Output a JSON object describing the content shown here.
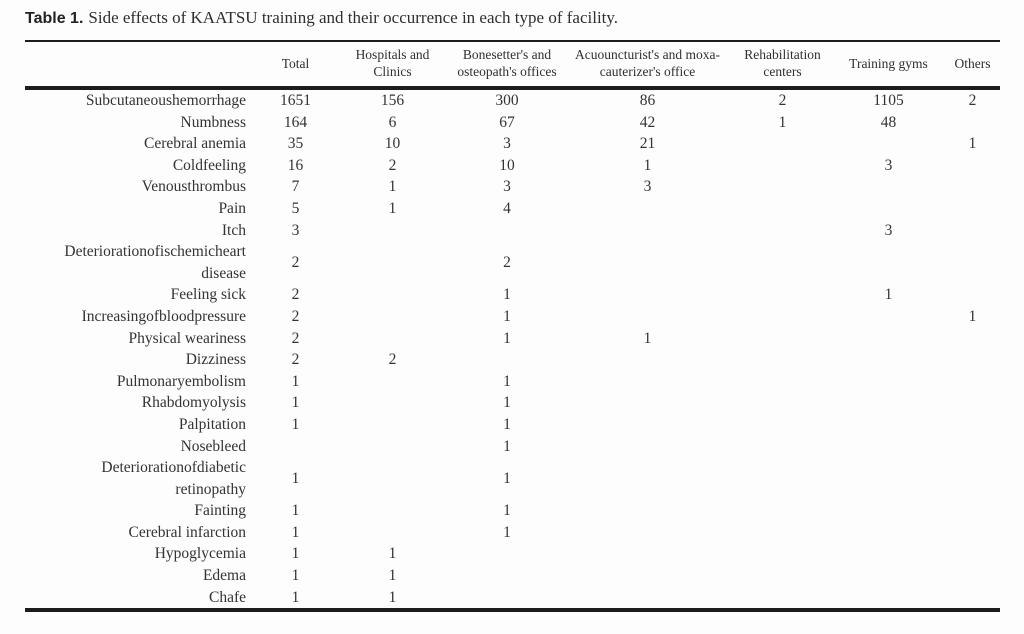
{
  "title": {
    "number": "Table 1.",
    "caption": "Side effects of KAATSU training and their occurrence in each type of facility."
  },
  "colors": {
    "background": "#fdfdfd",
    "text": "#333333",
    "rule": "#1c1c1c"
  },
  "table": {
    "columns": [
      "",
      "Total",
      "Hospitals and Clinics",
      "Bonesetter's and osteopath's offices",
      "Acuouncturist's and moxa-cauterizer's office",
      "Rehabilitation centers",
      "Training gyms",
      "Others"
    ],
    "rows": [
      {
        "label": "Subcutaneoushemorrhage",
        "values": [
          "1651",
          "156",
          "300",
          "86",
          "2",
          "1105",
          "2"
        ]
      },
      {
        "label": "Numbness",
        "values": [
          "164",
          "6",
          "67",
          "42",
          "1",
          "48",
          ""
        ]
      },
      {
        "label": "Cerebral anemia",
        "values": [
          "35",
          "10",
          "3",
          "21",
          "",
          "",
          "1"
        ]
      },
      {
        "label": "Coldfeeling",
        "values": [
          "16",
          "2",
          "10",
          "1",
          "",
          "3",
          ""
        ]
      },
      {
        "label": "Venousthrombus",
        "values": [
          "7",
          "1",
          "3",
          "3",
          "",
          "",
          ""
        ]
      },
      {
        "label": "Pain",
        "values": [
          "5",
          "1",
          "4",
          "",
          "",
          "",
          ""
        ]
      },
      {
        "label": "Itch",
        "values": [
          "3",
          "",
          "",
          "",
          "",
          "3",
          ""
        ]
      },
      {
        "label": "Deteriorationofischemicheart disease",
        "values": [
          "2",
          "",
          "2",
          "",
          "",
          "",
          ""
        ]
      },
      {
        "label": "Feeling sick",
        "values": [
          "2",
          "",
          "1",
          "",
          "",
          "1",
          ""
        ]
      },
      {
        "label": "Increasingofbloodpressure",
        "values": [
          "2",
          "",
          "1",
          "",
          "",
          "",
          "1"
        ]
      },
      {
        "label": "Physical weariness",
        "values": [
          "2",
          "",
          "1",
          "1",
          "",
          "",
          ""
        ]
      },
      {
        "label": "Dizziness",
        "values": [
          "2",
          "2",
          "",
          "",
          "",
          "",
          ""
        ]
      },
      {
        "label": "Pulmonaryembolism",
        "values": [
          "1",
          "",
          "1",
          "",
          "",
          "",
          ""
        ]
      },
      {
        "label": "Rhabdomyolysis",
        "values": [
          "1",
          "",
          "1",
          "",
          "",
          "",
          ""
        ]
      },
      {
        "label": "Palpitation",
        "values": [
          "1",
          "",
          "1",
          "",
          "",
          "",
          ""
        ]
      },
      {
        "label": "Nosebleed",
        "values": [
          "",
          "",
          "1",
          "",
          "",
          "",
          ""
        ]
      },
      {
        "label": "Deteriorationofdiabetic retinopathy",
        "values": [
          "1",
          "",
          "1",
          "",
          "",
          "",
          ""
        ]
      },
      {
        "label": "Fainting",
        "values": [
          "1",
          "",
          "1",
          "",
          "",
          "",
          ""
        ]
      },
      {
        "label": "Cerebral infarction",
        "values": [
          "1",
          "",
          "1",
          "",
          "",
          "",
          ""
        ]
      },
      {
        "label": "Hypoglycemia",
        "values": [
          "1",
          "1",
          "",
          "",
          "",
          "",
          ""
        ]
      },
      {
        "label": "Edema",
        "values": [
          "1",
          "1",
          "",
          "",
          "",
          "",
          ""
        ]
      },
      {
        "label": "Chafe",
        "values": [
          "1",
          "1",
          "",
          "",
          "",
          "",
          ""
        ]
      }
    ]
  }
}
